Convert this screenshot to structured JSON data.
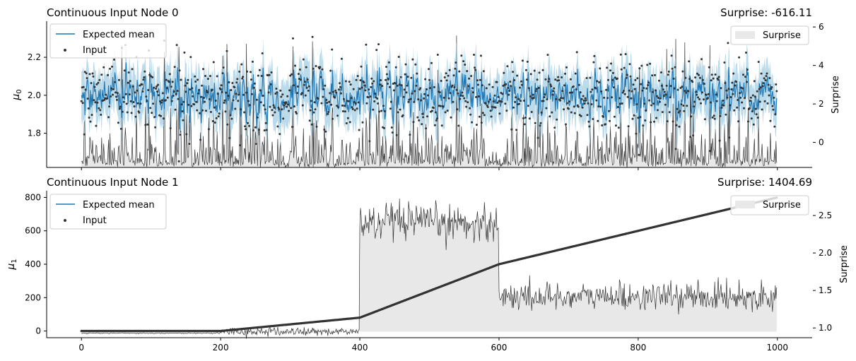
{
  "chart_data": [
    {
      "type": "line",
      "title": "Continuous Input Node 0",
      "surprise_label": "Surprise: -616.11",
      "ylabel": "μ",
      "ylabel_sub": "0",
      "y2label": "Surprise",
      "xlim": [
        -50,
        1050
      ],
      "ylim": [
        1.62,
        2.39
      ],
      "y2lim": [
        -1.3,
        6.3
      ],
      "yticks": [
        1.8,
        2.0,
        2.2
      ],
      "ytick_labels": [
        "1.8",
        "2.0",
        "2.2"
      ],
      "y2ticks": [
        0,
        2,
        4,
        6
      ],
      "y2tick_labels": [
        "0",
        "2",
        "4",
        "6"
      ],
      "xticks": [
        0,
        200,
        400,
        600,
        800,
        1000
      ],
      "show_xtick_labels": false,
      "legend": {
        "placement": "top-left",
        "entries": [
          "Expected mean",
          "Input"
        ]
      },
      "legend2": {
        "placement": "top-right",
        "entries": [
          "Surprise"
        ]
      },
      "n_points": 1000,
      "input": {
        "pattern": "stationary noise",
        "mean": 2.0,
        "sd": 0.1,
        "min": 1.65,
        "max": 2.36
      },
      "surprise": {
        "baseline": -1.3,
        "typical_max": 2.5,
        "max": 5.9
      },
      "colors": {
        "expected_mean": "#1f77b4",
        "band": "#9ecae1",
        "input": "#333333",
        "surprise_line": "#333333",
        "surprise_fill": "#e8e8e8"
      }
    },
    {
      "type": "line",
      "title": "Continuous Input Node 1",
      "surprise_label": "Surprise: 1404.69",
      "ylabel": "μ",
      "ylabel_sub": "1",
      "y2label": "Surprise",
      "xlim": [
        -50,
        1050
      ],
      "ylim": [
        -40,
        840
      ],
      "y2lim": [
        0.87,
        2.83
      ],
      "yticks": [
        0,
        200,
        400,
        600,
        800
      ],
      "ytick_labels": [
        "0",
        "200",
        "400",
        "600",
        "800"
      ],
      "y2ticks": [
        1.0,
        1.5,
        2.0,
        2.5
      ],
      "y2tick_labels": [
        "1.0",
        "1.5",
        "2.0",
        "2.5"
      ],
      "xticks": [
        0,
        200,
        400,
        600,
        800,
        1000
      ],
      "xtick_labels": [
        "0",
        "200",
        "400",
        "600",
        "800",
        "1000"
      ],
      "legend": {
        "placement": "top-left",
        "entries": [
          "Expected mean",
          "Input"
        ]
      },
      "legend2": {
        "placement": "top-right",
        "entries": [
          "Surprise"
        ]
      },
      "n_points": 1000,
      "input": {
        "pattern": "piecewise linear",
        "knots": [
          [
            0,
            0
          ],
          [
            200,
            0
          ],
          [
            400,
            80
          ],
          [
            600,
            400
          ],
          [
            1000,
            800
          ]
        ]
      },
      "surprise": {
        "segments": [
          {
            "x": [
              0,
              200
            ],
            "level": 0.93,
            "noise": 0.003
          },
          {
            "x": [
              200,
              400
            ],
            "level": 0.95,
            "noise": 0.03
          },
          {
            "x": [
              400,
              600
            ],
            "level": 2.4,
            "noise": 0.12
          },
          {
            "x": [
              600,
              1000
            ],
            "level": 1.42,
            "noise": 0.09
          }
        ],
        "baseline": 0.95
      },
      "colors": {
        "expected_mean": "#1f77b4",
        "input": "#333333",
        "surprise_line": "#333333",
        "surprise_fill": "#e8e8e8"
      }
    }
  ]
}
